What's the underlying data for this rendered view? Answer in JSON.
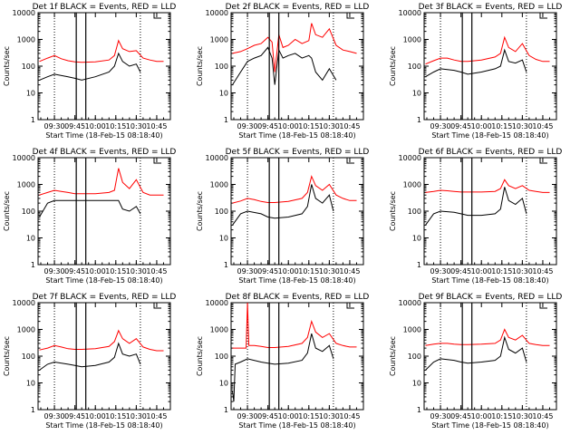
{
  "figure": {
    "ylabel": "Counts/sec",
    "xlabel": "Start Time (18-Feb-15 08:18:40)",
    "ylim": [
      1,
      10000
    ],
    "yscale": "log",
    "y_ticks": [
      "1",
      "10",
      "100",
      "1000",
      "10000"
    ],
    "colors": {
      "events": "#000000",
      "lld": "#ff0000",
      "axes": "#000000"
    },
    "legend_text": "BLACK = Events, RED = LLD"
  },
  "chart_data": [
    {
      "type": "line",
      "title": "Det 1f BLACK = Events, RED = LLD",
      "x_ticks": [
        "09:30",
        "09:45",
        "10:00",
        "10:15",
        "10:30",
        "10:45"
      ],
      "x_tick_minutes": [
        570,
        585,
        600,
        615,
        630,
        645
      ],
      "xlim": [
        558,
        655
      ],
      "dotted_lines_minutes": [
        570,
        633
      ],
      "solid_lines_minutes": [
        586,
        593
      ],
      "series": [
        {
          "key": "lld",
          "x": [
            559,
            565,
            570,
            575,
            580,
            585,
            590,
            600,
            610,
            614,
            617,
            620,
            625,
            630,
            635,
            640,
            645,
            650
          ],
          "y": [
            150,
            200,
            250,
            190,
            160,
            145,
            140,
            145,
            170,
            250,
            900,
            450,
            350,
            380,
            200,
            170,
            150,
            150
          ]
        },
        {
          "key": "events",
          "x": [
            559,
            565,
            570,
            580,
            585,
            590,
            600,
            610,
            614,
            617,
            620,
            625,
            630,
            633
          ],
          "y": [
            30,
            40,
            50,
            40,
            35,
            30,
            40,
            60,
            100,
            300,
            150,
            100,
            120,
            60
          ]
        }
      ]
    },
    {
      "type": "line",
      "title": "Det 2f BLACK = Events, RED = LLD",
      "x_ticks": [
        "09:30",
        "09:45",
        "10:00",
        "10:15",
        "10:30",
        "10:45"
      ],
      "x_tick_minutes": [
        570,
        585,
        600,
        615,
        630,
        645
      ],
      "xlim": [
        558,
        655
      ],
      "dotted_lines_minutes": [
        570,
        633
      ],
      "solid_lines_minutes": [
        586,
        593
      ],
      "series": [
        {
          "key": "lld",
          "x": [
            559,
            565,
            570,
            575,
            580,
            585,
            588,
            590,
            593,
            596,
            600,
            605,
            610,
            615,
            617,
            620,
            625,
            630,
            635,
            640,
            645,
            650
          ],
          "y": [
            300,
            350,
            450,
            600,
            700,
            1200,
            800,
            60,
            1500,
            500,
            600,
            1000,
            700,
            900,
            4000,
            1500,
            1200,
            2500,
            600,
            400,
            350,
            300
          ]
        },
        {
          "key": "events",
          "x": [
            559,
            565,
            570,
            575,
            580,
            585,
            588,
            590,
            593,
            596,
            600,
            605,
            610,
            615,
            617,
            620,
            625,
            630,
            635
          ],
          "y": [
            20,
            60,
            150,
            200,
            250,
            500,
            200,
            20,
            400,
            200,
            250,
            300,
            200,
            250,
            200,
            60,
            30,
            80,
            30
          ]
        }
      ]
    },
    {
      "type": "line",
      "title": "Det 3f BLACK = Events, RED = LLD",
      "x_ticks": [
        "09:30",
        "09:45",
        "10:00",
        "10:15",
        "10:30",
        "10:45"
      ],
      "x_tick_minutes": [
        570,
        585,
        600,
        615,
        630,
        645
      ],
      "xlim": [
        558,
        655
      ],
      "dotted_lines_minutes": [
        570,
        633
      ],
      "solid_lines_minutes": [
        586,
        593
      ],
      "series": [
        {
          "key": "lld",
          "x": [
            559,
            565,
            570,
            575,
            580,
            585,
            590,
            600,
            610,
            614,
            617,
            620,
            625,
            630,
            635,
            640,
            645,
            650
          ],
          "y": [
            120,
            160,
            200,
            200,
            170,
            150,
            150,
            170,
            220,
            300,
            1200,
            500,
            350,
            700,
            250,
            180,
            150,
            150
          ]
        },
        {
          "key": "events",
          "x": [
            559,
            565,
            570,
            580,
            585,
            590,
            600,
            610,
            614,
            617,
            620,
            625,
            630,
            633
          ],
          "y": [
            40,
            60,
            80,
            70,
            60,
            50,
            60,
            80,
            100,
            400,
            150,
            130,
            170,
            60
          ]
        }
      ]
    },
    {
      "type": "line",
      "title": "Det 4f BLACK = Events, RED = LLD",
      "x_ticks": [
        "09:30",
        "09:45",
        "10:00",
        "10:15",
        "10:30",
        "10:45"
      ],
      "x_tick_minutes": [
        570,
        585,
        600,
        615,
        630,
        645
      ],
      "xlim": [
        558,
        655
      ],
      "dotted_lines_minutes": [
        570,
        633
      ],
      "solid_lines_minutes": [
        586,
        593
      ],
      "series": [
        {
          "key": "lld",
          "x": [
            559,
            565,
            570,
            575,
            580,
            585,
            590,
            600,
            610,
            614,
            617,
            620,
            625,
            630,
            635,
            640,
            645,
            650
          ],
          "y": [
            400,
            500,
            600,
            550,
            500,
            450,
            450,
            450,
            500,
            600,
            4000,
            1200,
            700,
            1500,
            500,
            400,
            400,
            400
          ]
        },
        {
          "key": "events",
          "x": [
            559,
            565,
            570,
            575,
            580,
            585,
            590,
            600,
            610,
            614,
            617,
            620,
            625,
            630,
            633
          ],
          "y": [
            60,
            200,
            250,
            250,
            250,
            250,
            250,
            250,
            250,
            250,
            250,
            120,
            100,
            150,
            80
          ]
        }
      ]
    },
    {
      "type": "line",
      "title": "Det 5f BLACK = Events, RED = LLD",
      "x_ticks": [
        "09:30",
        "09:45",
        "10:00",
        "10:15",
        "10:30",
        "10:45"
      ],
      "x_tick_minutes": [
        570,
        585,
        600,
        615,
        630,
        645
      ],
      "xlim": [
        558,
        655
      ],
      "dotted_lines_minutes": [
        570,
        633
      ],
      "solid_lines_minutes": [
        586,
        593
      ],
      "series": [
        {
          "key": "lld",
          "x": [
            559,
            565,
            570,
            575,
            580,
            585,
            590,
            600,
            610,
            614,
            617,
            620,
            625,
            630,
            635,
            640,
            645,
            650
          ],
          "y": [
            200,
            240,
            300,
            270,
            230,
            210,
            210,
            230,
            300,
            500,
            2000,
            900,
            600,
            1000,
            400,
            300,
            250,
            250
          ]
        },
        {
          "key": "events",
          "x": [
            559,
            565,
            570,
            580,
            585,
            590,
            600,
            610,
            614,
            617,
            620,
            625,
            630,
            633
          ],
          "y": [
            30,
            80,
            100,
            80,
            60,
            55,
            60,
            80,
            150,
            1000,
            300,
            200,
            400,
            100
          ]
        }
      ]
    },
    {
      "type": "line",
      "title": "Det 6f BLACK = Events, RED = LLD",
      "x_ticks": [
        "09:30",
        "09:45",
        "10:00",
        "10:15",
        "10:30",
        "10:45"
      ],
      "x_tick_minutes": [
        570,
        585,
        600,
        615,
        630,
        645
      ],
      "xlim": [
        558,
        655
      ],
      "dotted_lines_minutes": [
        570,
        633
      ],
      "solid_lines_minutes": [
        586,
        593
      ],
      "series": [
        {
          "key": "lld",
          "x": [
            559,
            565,
            570,
            575,
            580,
            585,
            590,
            600,
            610,
            614,
            617,
            620,
            625,
            630,
            635,
            640,
            645,
            650
          ],
          "y": [
            500,
            550,
            600,
            580,
            550,
            520,
            520,
            520,
            550,
            700,
            1500,
            900,
            700,
            900,
            600,
            550,
            500,
            500
          ]
        },
        {
          "key": "events",
          "x": [
            559,
            565,
            570,
            580,
            585,
            590,
            600,
            610,
            614,
            617,
            620,
            625,
            630,
            633
          ],
          "y": [
            30,
            80,
            100,
            90,
            80,
            70,
            70,
            80,
            120,
            800,
            250,
            180,
            300,
            80
          ]
        }
      ]
    },
    {
      "type": "line",
      "title": "Det 7f BLACK = Events, RED = LLD",
      "x_ticks": [
        "09:30",
        "09:45",
        "10:00",
        "10:15",
        "10:30",
        "10:45"
      ],
      "x_tick_minutes": [
        570,
        585,
        600,
        615,
        630,
        645
      ],
      "xlim": [
        558,
        655
      ],
      "dotted_lines_minutes": [
        570,
        633
      ],
      "solid_lines_minutes": [
        586,
        593
      ],
      "series": [
        {
          "key": "lld",
          "x": [
            559,
            565,
            570,
            575,
            580,
            585,
            590,
            600,
            610,
            614,
            617,
            620,
            625,
            630,
            635,
            640,
            645,
            650
          ],
          "y": [
            170,
            200,
            250,
            220,
            190,
            180,
            180,
            190,
            230,
            350,
            900,
            450,
            300,
            450,
            220,
            180,
            160,
            160
          ]
        },
        {
          "key": "events",
          "x": [
            559,
            565,
            570,
            580,
            585,
            590,
            600,
            610,
            614,
            617,
            620,
            625,
            630,
            633
          ],
          "y": [
            30,
            50,
            60,
            50,
            45,
            40,
            45,
            60,
            90,
            300,
            120,
            100,
            120,
            50
          ]
        }
      ]
    },
    {
      "type": "line",
      "title": "Det 8f BLACK = Events, RED = LLD",
      "x_ticks": [
        "09:30",
        "09:45",
        "10:00",
        "10:15",
        "10:30",
        "10:45"
      ],
      "x_tick_minutes": [
        570,
        585,
        600,
        615,
        630,
        645
      ],
      "xlim": [
        558,
        655
      ],
      "dotted_lines_minutes": [
        570,
        633
      ],
      "solid_lines_minutes": [
        586,
        593
      ],
      "series": [
        {
          "key": "lld",
          "x": [
            559,
            565,
            569,
            570,
            571,
            575,
            580,
            585,
            590,
            600,
            610,
            614,
            617,
            620,
            625,
            630,
            635,
            640,
            645,
            650
          ],
          "y": [
            200,
            200,
            200,
            10000,
            250,
            250,
            230,
            210,
            210,
            230,
            300,
            500,
            2000,
            800,
            500,
            700,
            300,
            250,
            220,
            220
          ]
        },
        {
          "key": "events",
          "x": [
            559,
            560,
            561,
            565,
            570,
            580,
            585,
            590,
            600,
            610,
            614,
            617,
            620,
            625,
            630,
            633
          ],
          "y": [
            5,
            2,
            50,
            60,
            80,
            60,
            55,
            50,
            55,
            70,
            130,
            700,
            200,
            150,
            250,
            80
          ]
        }
      ]
    },
    {
      "type": "line",
      "title": "Det 9f BLACK = Events, RED = LLD",
      "x_ticks": [
        "09:30",
        "09:45",
        "10:00",
        "10:15",
        "10:30",
        "10:45"
      ],
      "x_tick_minutes": [
        570,
        585,
        600,
        615,
        630,
        645
      ],
      "xlim": [
        558,
        655
      ],
      "dotted_lines_minutes": [
        570,
        633
      ],
      "solid_lines_minutes": [
        586,
        593
      ],
      "series": [
        {
          "key": "lld",
          "x": [
            559,
            565,
            570,
            575,
            580,
            585,
            590,
            600,
            610,
            614,
            617,
            620,
            625,
            630,
            635,
            640,
            645,
            650
          ],
          "y": [
            250,
            280,
            300,
            300,
            280,
            270,
            270,
            280,
            300,
            400,
            1000,
            500,
            400,
            600,
            300,
            270,
            250,
            250
          ]
        },
        {
          "key": "events",
          "x": [
            559,
            565,
            570,
            580,
            585,
            590,
            600,
            610,
            614,
            617,
            620,
            625,
            630,
            633
          ],
          "y": [
            30,
            60,
            80,
            70,
            60,
            55,
            60,
            70,
            100,
            500,
            180,
            130,
            200,
            60
          ]
        }
      ]
    }
  ]
}
